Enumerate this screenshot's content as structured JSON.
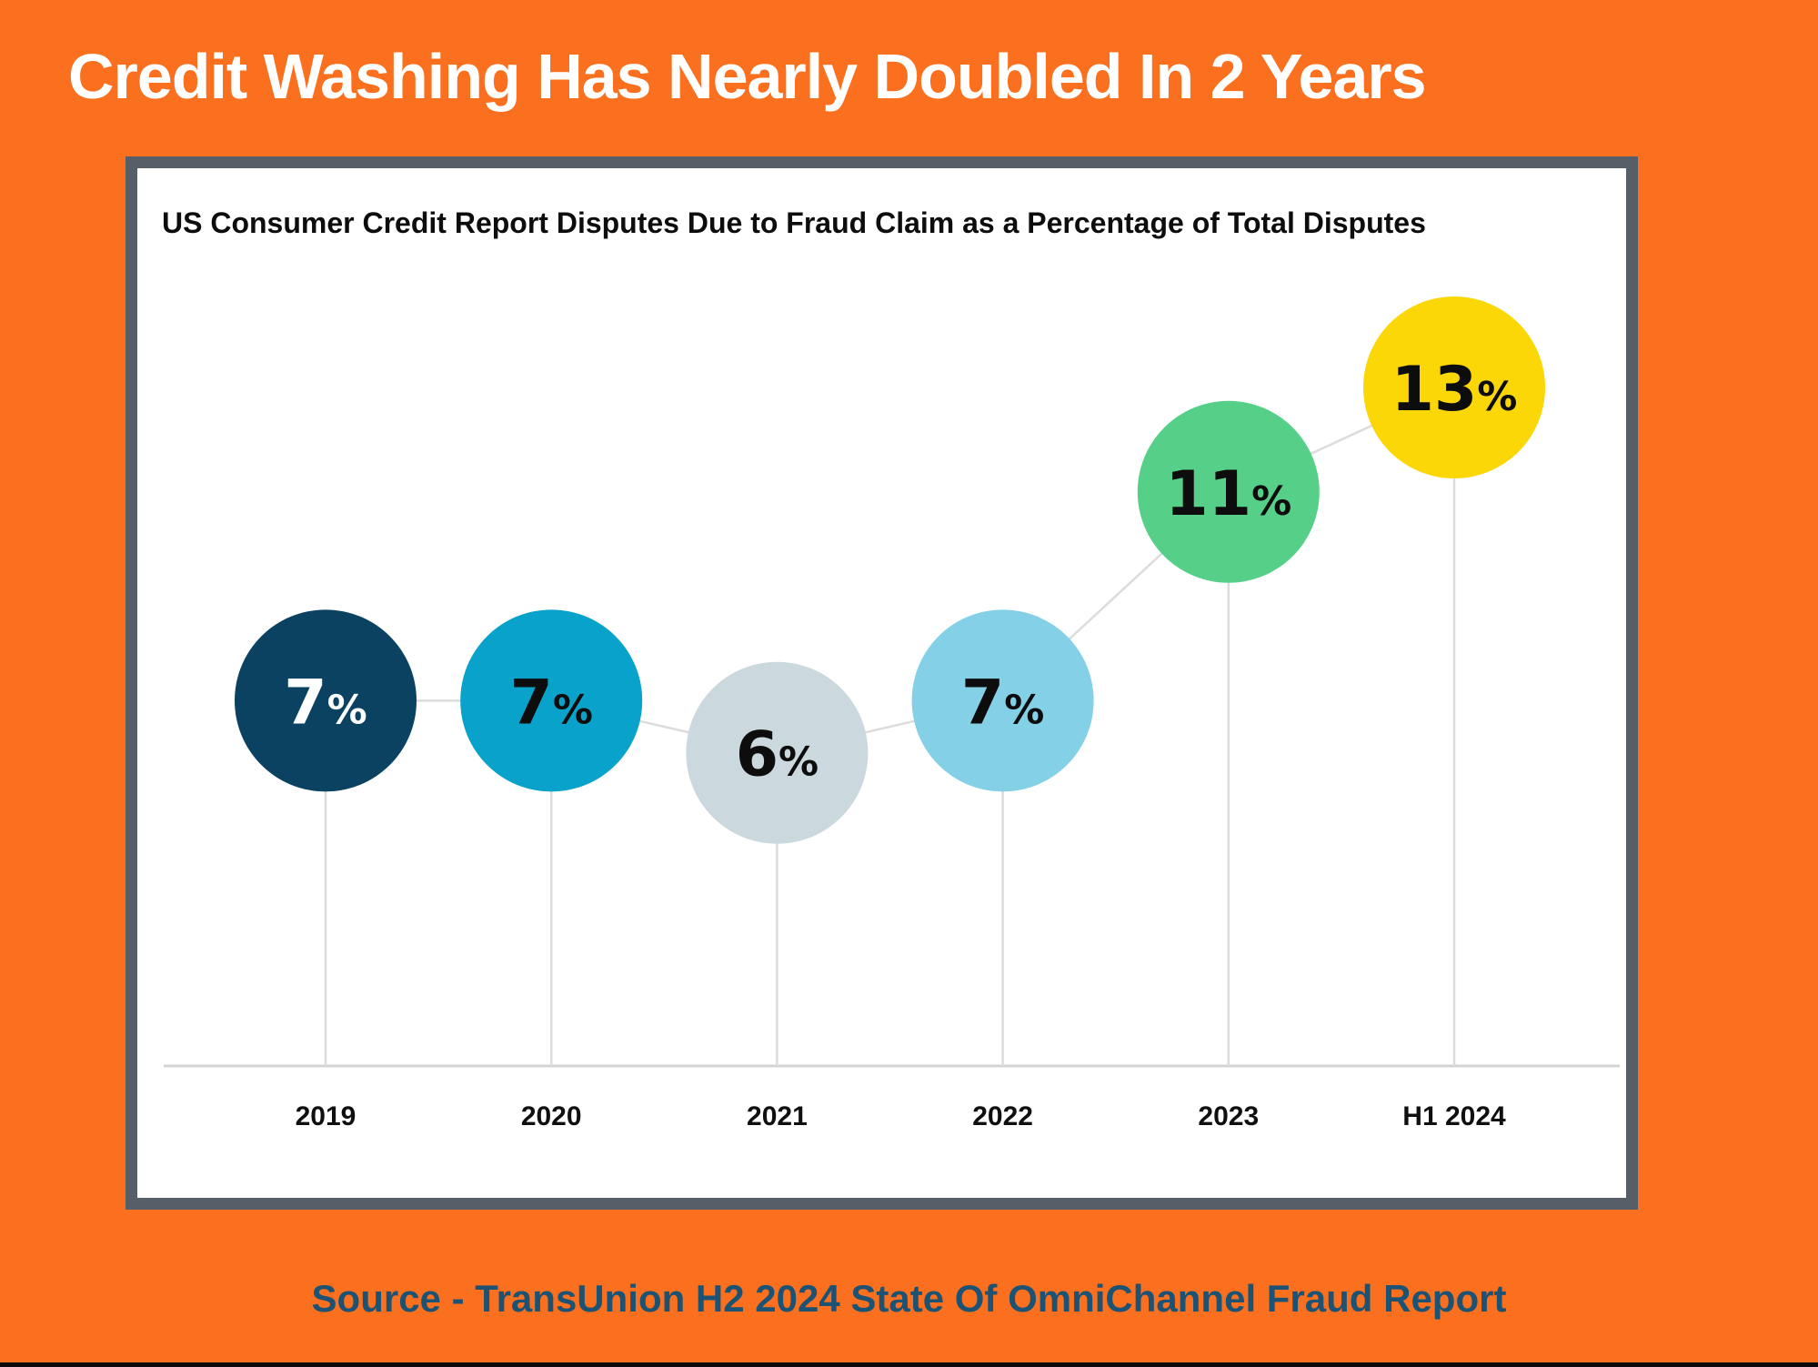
{
  "page": {
    "title": "Credit Washing Has Nearly Doubled In 2 Years",
    "source_caption": "Source - TransUnion H2 2024 State Of OmniChannel Fraud Report"
  },
  "chart_data": {
    "type": "line",
    "variant": "lollipop-bubble-timeline",
    "title": "US Consumer Credit Report Disputes Due to Fraud Claim as a Percentage of Total Disputes",
    "categories": [
      "2019",
      "2020",
      "2021",
      "2022",
      "2023",
      "H1 2024"
    ],
    "values": [
      7,
      7,
      6,
      7,
      11,
      13
    ],
    "labels": [
      "7%",
      "7%",
      "6%",
      "7%",
      "11%",
      "13%"
    ],
    "unit": "%",
    "ylim": [
      0,
      17.2
    ],
    "grid": false,
    "legend": "none",
    "point_colors": [
      "#0b4262",
      "#09a2cb",
      "#cbd8dd",
      "#83d0e7",
      "#56d088",
      "#fbd707"
    ],
    "label_colors": [
      "#ffffff",
      "#0d0d0d",
      "#0d0d0d",
      "#0d0d0d",
      "#0d0d0d",
      "#0d0d0d"
    ],
    "connector_color": "#dcdcdc",
    "axis_color": "#d3d3d3",
    "category_label_color": "#101010"
  },
  "colors": {
    "background": "#fa701e",
    "card_border": "#565e67",
    "card_background": "#ffffff",
    "title_text": "#ffffff",
    "chart_title_text": "#0d0d0d",
    "source_text": "#1c5273",
    "bottom_bar": "#0a0a0a"
  }
}
